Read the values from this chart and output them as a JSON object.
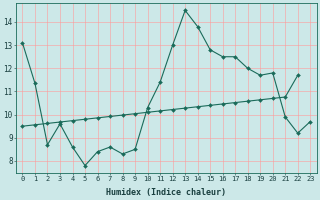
{
  "xlabel": "Humidex (Indice chaleur)",
  "ylabel": "",
  "bg_color": "#cce8e8",
  "grid_color": "#ff9999",
  "line_color": "#1a6b5a",
  "xlim": [
    -0.5,
    23.5
  ],
  "ylim": [
    7.5,
    14.8
  ],
  "xticks": [
    0,
    1,
    2,
    3,
    4,
    5,
    6,
    7,
    8,
    9,
    10,
    11,
    12,
    13,
    14,
    15,
    16,
    17,
    18,
    19,
    20,
    21,
    22,
    23
  ],
  "yticks": [
    8,
    9,
    10,
    11,
    12,
    13,
    14
  ],
  "line1_x": [
    0,
    1,
    2,
    3,
    4,
    5,
    6,
    7,
    8,
    9,
    10,
    11,
    12,
    13,
    14,
    15,
    16,
    17,
    18,
    19,
    20,
    21,
    22,
    23
  ],
  "line1_y": [
    13.1,
    11.35,
    8.7,
    9.6,
    8.6,
    7.8,
    8.4,
    8.6,
    8.3,
    8.5,
    10.3,
    11.4,
    13.0,
    14.5,
    13.8,
    12.8,
    12.5,
    12.5,
    12.0,
    11.7,
    11.8,
    9.9,
    9.2,
    9.7
  ],
  "line2_x": [
    0,
    1,
    2,
    3,
    4,
    5,
    6,
    7,
    8,
    9,
    10,
    11,
    12,
    13,
    14,
    15,
    16,
    17,
    18,
    19,
    20,
    21,
    22
  ],
  "line2_y": [
    9.5,
    9.56,
    9.62,
    9.68,
    9.74,
    9.8,
    9.86,
    9.92,
    9.98,
    10.04,
    10.1,
    10.16,
    10.22,
    10.28,
    10.34,
    10.4,
    10.46,
    10.52,
    10.58,
    10.64,
    10.7,
    10.76,
    11.7
  ],
  "tick_fontsize": 5,
  "xlabel_fontsize": 6,
  "marker_size": 2,
  "line_width": 0.8
}
